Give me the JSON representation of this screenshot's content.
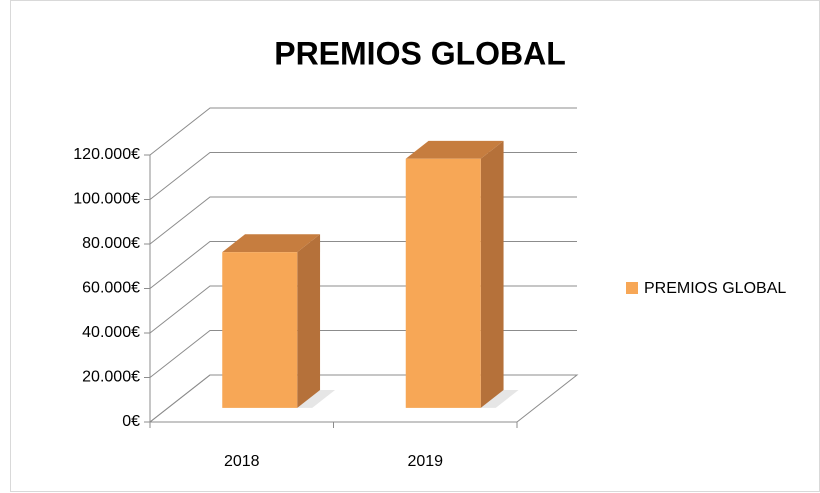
{
  "chart_data": {
    "type": "bar3d",
    "title": "PREMIOS GLOBAL",
    "categories": [
      "2018",
      "2019"
    ],
    "series": [
      {
        "name": "PREMIOS GLOBAL",
        "color": "#f7a756",
        "values": [
          70000,
          112000
        ]
      }
    ],
    "ylim": [
      0,
      120000
    ],
    "yticks": [
      {
        "value": 0,
        "label": "0€"
      },
      {
        "value": 20000,
        "label": "20.000€"
      },
      {
        "value": 40000,
        "label": "40.000€"
      },
      {
        "value": 60000,
        "label": "60.000€"
      },
      {
        "value": 80000,
        "label": "80.000€"
      },
      {
        "value": 100000,
        "label": "100.000€"
      },
      {
        "value": 120000,
        "label": "120.000€"
      }
    ],
    "grid": true,
    "legend": "right"
  }
}
